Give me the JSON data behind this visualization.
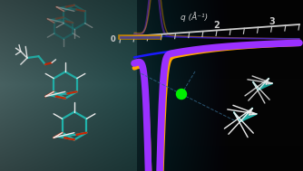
{
  "figsize": [
    3.34,
    1.89
  ],
  "dpi": 100,
  "bg_left_color": "#4a6060",
  "bg_right_color": "#050505",
  "curve_purple": {
    "color": "#9b30ff",
    "linewidth": 5.5
  },
  "curve_orange": {
    "color": "#ffa500",
    "linewidth": 3.5
  },
  "curve_blue": {
    "color": "#1a1aff",
    "linewidth": 1.8
  },
  "axis_color": "#dddddd",
  "green_dot": {
    "color": "#00ee00",
    "size": 80
  },
  "xlabel": "q (Å⁻¹)",
  "xlabel_color": "#cccccc",
  "dashed_color": "#336688",
  "mol_teal": "#20b2aa",
  "mol_red": "#cc2200",
  "mol_white": "#eeeeee",
  "mol_dark": "#111111"
}
